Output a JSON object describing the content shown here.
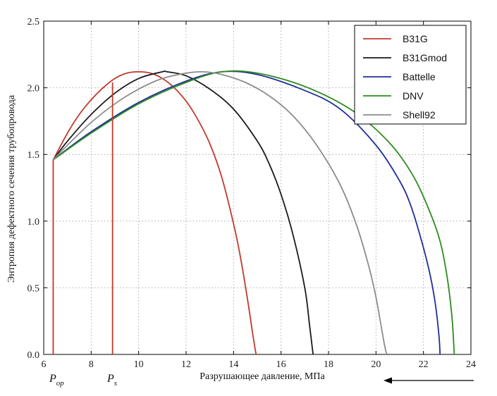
{
  "chart_data": {
    "type": "line",
    "xlabel": "Разрушающее давление, МПа",
    "ylabel": "Энтропия дефектного сечения трубопровода",
    "xlim": [
      6,
      24
    ],
    "ylim": [
      0,
      2.5
    ],
    "x_ticks": [
      "6",
      "8",
      "10",
      "12",
      "14",
      "16",
      "18",
      "20",
      "22",
      "24"
    ],
    "y_ticks": [
      "0.0",
      "0.5",
      "1.0",
      "1.5",
      "2.0",
      "2.5"
    ],
    "grid": true,
    "legend_position": "top-right",
    "series": [
      {
        "name": "B31G",
        "color": "#c0392b",
        "x": [
          6.4,
          7.0,
          7.5,
          8.0,
          8.5,
          9.0,
          9.5,
          10.0,
          10.5,
          11.0,
          11.5,
          12.0,
          12.5,
          13.0,
          13.5,
          14.0,
          14.3,
          14.6,
          14.8,
          14.9,
          14.95
        ],
        "y": [
          1.46,
          1.66,
          1.8,
          1.91,
          2.0,
          2.07,
          2.11,
          2.12,
          2.11,
          2.07,
          2.0,
          1.9,
          1.76,
          1.58,
          1.33,
          0.98,
          0.72,
          0.4,
          0.16,
          0.05,
          0.0
        ]
      },
      {
        "name": "B31Gmod",
        "color": "#1a1a1a",
        "x": [
          6.4,
          7.0,
          8.0,
          9.0,
          10.0,
          11.0,
          11.2,
          12.0,
          13.0,
          14.0,
          15.0,
          15.5,
          16.0,
          16.5,
          17.0,
          17.2,
          17.35
        ],
        "y": [
          1.46,
          1.6,
          1.8,
          1.96,
          2.07,
          2.12,
          2.12,
          2.09,
          1.99,
          1.84,
          1.6,
          1.43,
          1.2,
          0.9,
          0.5,
          0.22,
          0.0
        ]
      },
      {
        "name": "Battelle",
        "color": "#1f2f9a",
        "x": [
          6.4,
          8.0,
          10.0,
          12.0,
          13.5,
          15.0,
          17.0,
          18.5,
          20.0,
          21.0,
          21.5,
          22.0,
          22.3,
          22.5,
          22.65,
          22.7
        ],
        "y": [
          1.46,
          1.67,
          1.89,
          2.05,
          2.12,
          2.1,
          1.98,
          1.84,
          1.57,
          1.3,
          1.1,
          0.8,
          0.58,
          0.38,
          0.15,
          0.0
        ]
      },
      {
        "name": "DNV",
        "color": "#2e8b1e",
        "x": [
          6.4,
          8.0,
          10.0,
          12.0,
          13.5,
          15.0,
          17.0,
          19.0,
          20.5,
          21.5,
          22.2,
          22.7,
          23.0,
          23.2,
          23.3
        ],
        "y": [
          1.46,
          1.66,
          1.88,
          2.04,
          2.12,
          2.11,
          2.01,
          1.83,
          1.6,
          1.36,
          1.1,
          0.85,
          0.58,
          0.28,
          0.0
        ]
      },
      {
        "name": "Shell92",
        "color": "#8c8c8c",
        "x": [
          6.4,
          7.0,
          8.0,
          9.0,
          10.0,
          11.0,
          12.0,
          12.7,
          13.5,
          14.5,
          15.5,
          16.5,
          17.5,
          18.5,
          19.2,
          19.7,
          20.0,
          20.2,
          20.35,
          20.45
        ],
        "y": [
          1.46,
          1.57,
          1.74,
          1.88,
          1.99,
          2.07,
          2.11,
          2.12,
          2.1,
          2.04,
          1.94,
          1.79,
          1.57,
          1.27,
          0.96,
          0.66,
          0.43,
          0.23,
          0.08,
          0.0
        ]
      }
    ],
    "annotations": {
      "p_op": {
        "x": 6.4,
        "y_top": 1.46,
        "label_main": "P",
        "label_sub": "op",
        "color": "#c0392b"
      },
      "p_s": {
        "x": 8.9,
        "y_top": 2.04,
        "label_main": "P",
        "label_sub": "s",
        "color": "#c0392b"
      }
    },
    "arrow_direction": "left"
  }
}
